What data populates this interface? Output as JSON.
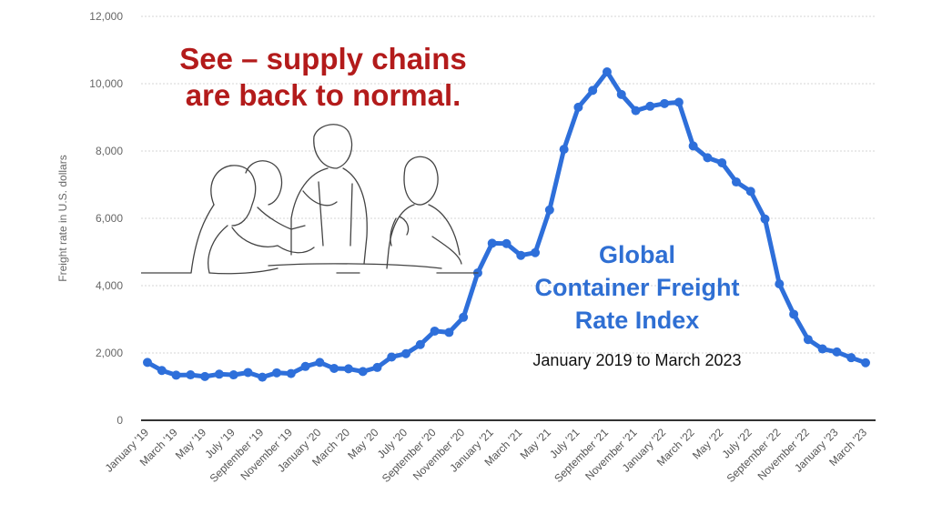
{
  "chart_data": {
    "type": "line",
    "title": "Global Container Freight Rate Index",
    "subtitle": "January 2019 to March 2023",
    "ylabel": "Freight rate in U.S. dollars",
    "ylim": [
      0,
      12000
    ],
    "yticks": [
      "0",
      "2,000",
      "4,000",
      "6,000",
      "8,000",
      "10,000",
      "12,000"
    ],
    "xtick_labels": [
      "January '19",
      "March '19",
      "May '19",
      "July '19",
      "September '19",
      "November '19",
      "January '20",
      "March '20",
      "May '20",
      "July '20",
      "September '20",
      "November '20",
      "January '21",
      "March '21",
      "May '21",
      "July '21",
      "September '21",
      "November '21",
      "January '22",
      "March '22",
      "May '22",
      "July '22",
      "September '22",
      "November '22",
      "January '23",
      "March '23"
    ],
    "x": [
      "Jan 2019",
      "Feb 2019",
      "Mar 2019",
      "Apr 2019",
      "May 2019",
      "Jun 2019",
      "Jul 2019",
      "Aug 2019",
      "Sep 2019",
      "Oct 2019",
      "Nov 2019",
      "Dec 2019",
      "Jan 2020",
      "Feb 2020",
      "Mar 2020",
      "Apr 2020",
      "May 2020",
      "Jun 2020",
      "Jul 2020",
      "Aug 2020",
      "Sep 2020",
      "Oct 2020",
      "Nov 2020",
      "Dec 2020",
      "Jan 2021",
      "Feb 2021",
      "Mar 2021",
      "Apr 2021",
      "May 2021",
      "Jun 2021",
      "Jul 2021",
      "Aug 2021",
      "Sep 2021",
      "Oct 2021",
      "Nov 2021",
      "Dec 2021",
      "Jan 2022",
      "Feb 2022",
      "Mar 2022",
      "Apr 2022",
      "May 2022",
      "Jun 2022",
      "Jul 2022",
      "Aug 2022",
      "Sep 2022",
      "Oct 2022",
      "Nov 2022",
      "Dec 2022",
      "Jan 2023",
      "Feb 2023",
      "Mar 2023"
    ],
    "values": [
      1720,
      1480,
      1340,
      1350,
      1300,
      1370,
      1350,
      1420,
      1280,
      1410,
      1390,
      1600,
      1720,
      1540,
      1530,
      1450,
      1570,
      1880,
      1980,
      2250,
      2650,
      2610,
      3060,
      4380,
      5260,
      5250,
      4900,
      4980,
      6250,
      8050,
      9300,
      9800,
      10350,
      9680,
      9200,
      9330,
      9410,
      9450,
      8150,
      7800,
      7650,
      7080,
      6800,
      5980,
      4050,
      3150,
      2400,
      2120,
      2030,
      1860,
      1710
    ],
    "color": "#2e6fda",
    "grid": true
  },
  "annotations": {
    "callout": [
      "See – supply chains",
      "are back to normal."
    ],
    "title_lines": [
      "Global",
      "Container Freight",
      "Rate Index"
    ],
    "subtitle": "January 2019 to March 2023"
  }
}
